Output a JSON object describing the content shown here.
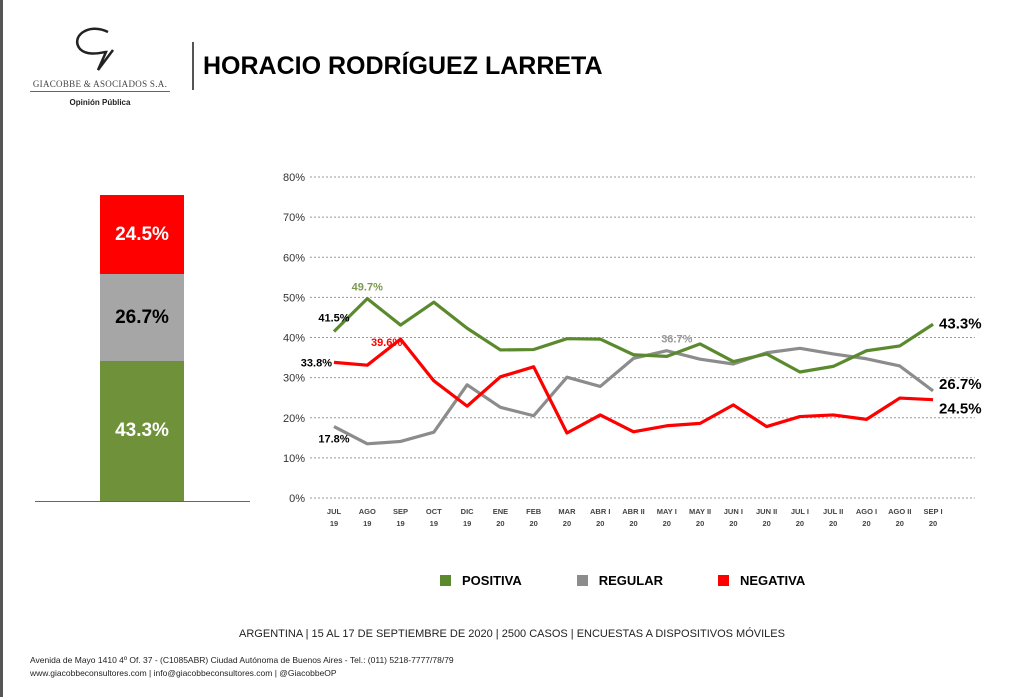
{
  "header": {
    "title": "HORACIO RODRÍGUEZ LARRETA",
    "logo_name": "GIACOBBE & ASOCIADOS S.A.",
    "logo_sub": "Opinión Pública"
  },
  "summary": {
    "negativa": "24.5%",
    "regular": "26.7%",
    "positiva": "43.3%",
    "values": [
      43.3,
      26.7,
      24.5
    ]
  },
  "colors": {
    "positiva": "#5b8a2e",
    "regular": "#8c8c8c",
    "negativa": "#ff0000"
  },
  "chart_data": {
    "type": "line",
    "categories": [
      "JUL 19",
      "AGO 19",
      "SEP 19",
      "OCT 19",
      "DIC 19",
      "ENE 20",
      "FEB 20",
      "MAR 20",
      "ABR I 20",
      "ABR II 20",
      "MAY I 20",
      "MAY II 20",
      "JUN I 20",
      "JUN II 20",
      "JUL I 20",
      "JUL II 20",
      "AGO I 20",
      "AGO II 20",
      "SEP I 20"
    ],
    "yticks": [
      "0%",
      "10%",
      "20%",
      "30%",
      "40%",
      "50%",
      "60%",
      "70%",
      "80%"
    ],
    "ylim": [
      0,
      80
    ],
    "grid": true,
    "legend": "bottom",
    "series": [
      {
        "name": "POSITIVA",
        "color": "#5b8a2e",
        "values": [
          41.5,
          49.7,
          43.1,
          48.8,
          42.3,
          36.9,
          37.0,
          39.7,
          39.6,
          35.7,
          35.3,
          38.4,
          34.0,
          35.9,
          31.4,
          32.8,
          36.7,
          37.9,
          43.3
        ]
      },
      {
        "name": "REGULAR",
        "color": "#8c8c8c",
        "values": [
          17.8,
          13.5,
          14.1,
          16.4,
          28.2,
          22.6,
          20.5,
          30.1,
          27.8,
          34.8,
          36.7,
          34.6,
          33.4,
          36.2,
          37.3,
          35.9,
          34.7,
          32.9,
          26.7
        ]
      },
      {
        "name": "NEGATIVA",
        "color": "#ff0000",
        "values": [
          33.8,
          33.1,
          39.6,
          29.2,
          22.9,
          30.2,
          32.7,
          16.2,
          20.7,
          16.5,
          18.0,
          18.6,
          23.2,
          17.8,
          20.3,
          20.7,
          19.6,
          24.9,
          24.5
        ]
      }
    ],
    "annotations": [
      {
        "text": "41.5%",
        "series": 0,
        "index": 0,
        "color": "#000"
      },
      {
        "text": "49.7%",
        "series": 0,
        "index": 1,
        "color": "#7a9a50"
      },
      {
        "text": "43.3%",
        "series": 0,
        "index": 18,
        "color": "#000"
      },
      {
        "text": "17.8%",
        "series": 1,
        "index": 0,
        "color": "#000"
      },
      {
        "text": "36.7%",
        "series": 1,
        "index": 10,
        "color": "#999"
      },
      {
        "text": "26.7%",
        "series": 1,
        "index": 18,
        "color": "#000"
      },
      {
        "text": "33.8%",
        "series": 2,
        "index": 0,
        "color": "#000"
      },
      {
        "text": "39.6%",
        "series": 2,
        "index": 2,
        "color": "#ff0000"
      },
      {
        "text": "24.5%",
        "series": 2,
        "index": 18,
        "color": "#000"
      }
    ]
  },
  "info": "ARGENTINA | 15 AL 17 DE SEPTIEMBRE DE 2020 | 2500 CASOS | ENCUESTAS A DISPOSITIVOS MÓVILES",
  "footer": {
    "address": "Avenida de Mayo 1410 4º Of. 37 - (C1085ABR) Ciudad Autónoma de Buenos Aires - Tel.: (011) 5218-7777/78/79",
    "web": "www.giacobbeconsultores.com | info@giacobbeconsultores.com | @GiacobbeOP"
  }
}
